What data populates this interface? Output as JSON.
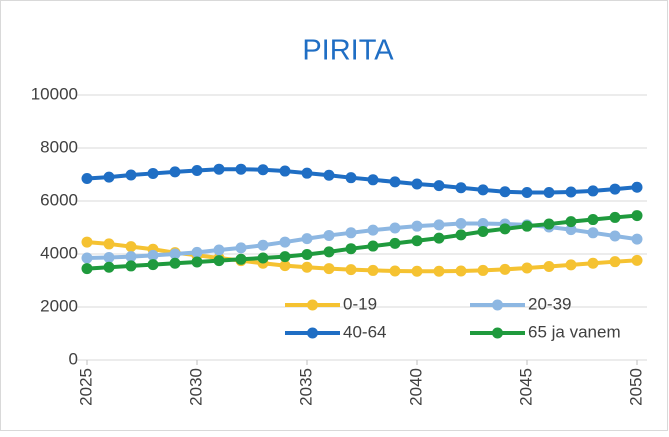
{
  "chart_data": {
    "type": "line",
    "title": "PIRITA",
    "x": [
      2025,
      2026,
      2027,
      2028,
      2029,
      2030,
      2031,
      2032,
      2033,
      2034,
      2035,
      2036,
      2037,
      2038,
      2039,
      2040,
      2041,
      2042,
      2043,
      2044,
      2045,
      2046,
      2047,
      2048,
      2049,
      2050
    ],
    "xlim": [
      2025,
      2050
    ],
    "xticks": [
      2025,
      2030,
      2035,
      2040,
      2045,
      2050
    ],
    "ylim": [
      0,
      10000
    ],
    "yticks": [
      0,
      2000,
      4000,
      6000,
      8000,
      10000
    ],
    "grid": true,
    "legend": "bottom-right",
    "series": [
      {
        "name": "0-19",
        "color": "#f5c231",
        "values": [
          4450,
          4380,
          4280,
          4180,
          4050,
          3950,
          3850,
          3750,
          3650,
          3560,
          3500,
          3450,
          3410,
          3380,
          3360,
          3350,
          3350,
          3360,
          3380,
          3420,
          3470,
          3530,
          3590,
          3650,
          3710,
          3760
        ]
      },
      {
        "name": "20-39",
        "color": "#8db7e2",
        "values": [
          3850,
          3870,
          3900,
          3950,
          4000,
          4060,
          4150,
          4230,
          4330,
          4450,
          4580,
          4700,
          4800,
          4900,
          4980,
          5050,
          5100,
          5150,
          5150,
          5130,
          5100,
          5020,
          4920,
          4800,
          4680,
          4560
        ]
      },
      {
        "name": "40-64",
        "color": "#1f6ec4",
        "values": [
          6850,
          6900,
          6980,
          7040,
          7100,
          7150,
          7200,
          7200,
          7180,
          7130,
          7050,
          6970,
          6880,
          6800,
          6720,
          6640,
          6580,
          6500,
          6420,
          6350,
          6320,
          6320,
          6340,
          6380,
          6450,
          6520
        ]
      },
      {
        "name": "65 ja vanem",
        "color": "#1f9a3d",
        "values": [
          3450,
          3500,
          3550,
          3600,
          3650,
          3700,
          3750,
          3800,
          3850,
          3900,
          3980,
          4080,
          4200,
          4300,
          4400,
          4500,
          4600,
          4720,
          4850,
          4950,
          5050,
          5130,
          5220,
          5300,
          5380,
          5450
        ]
      }
    ]
  }
}
